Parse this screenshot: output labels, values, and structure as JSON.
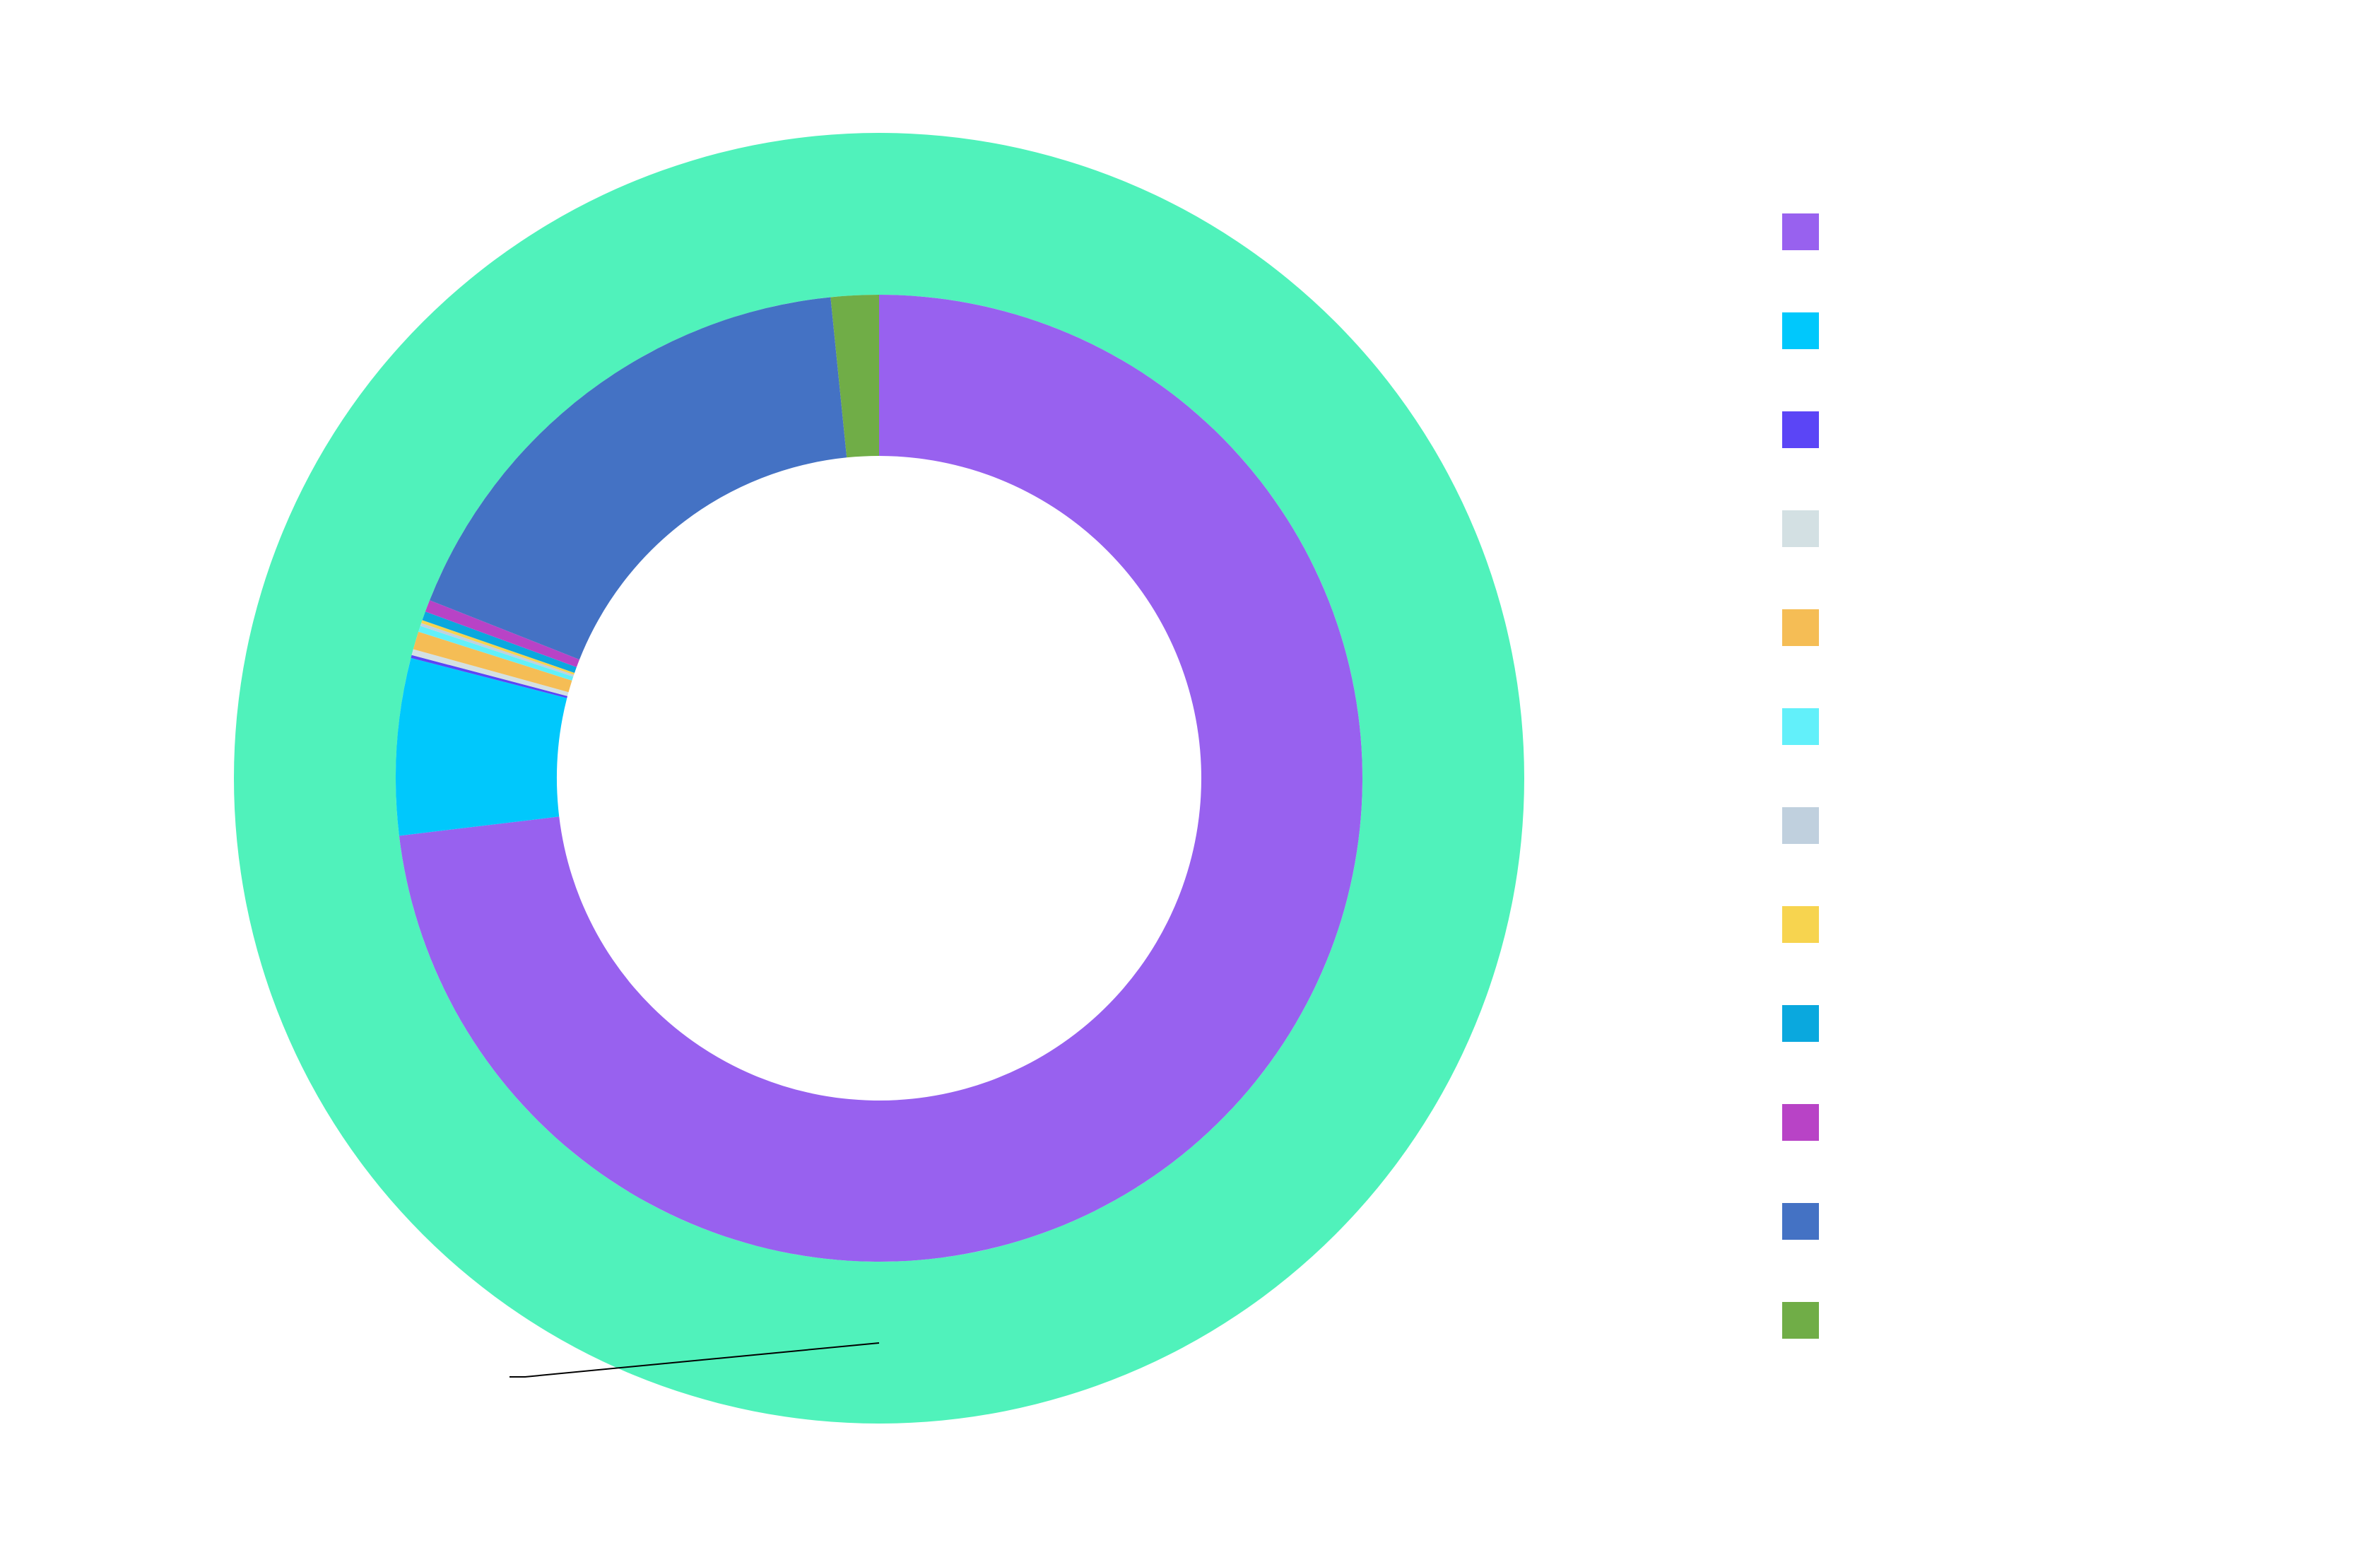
{
  "chart_data": {
    "type": "donut",
    "series": [
      {
        "values": [
          100
        ],
        "colors": [
          "#50f2bb"
        ]
      },
      {
        "values": [
          73.1,
          5.9,
          0.1,
          0.2,
          0.6,
          0.2,
          0.1,
          0.1,
          0.3,
          0.4,
          17.4,
          1.6
        ],
        "colors": [
          "#9861ef",
          "#00c8fc",
          "#5b45f6",
          "#d3e0e3",
          "#f5bd55",
          "#62f0fa",
          "#c0d0de",
          "#f7d44f",
          "#0aa8de",
          "#b843c6",
          "#4472c4",
          "#70ad47"
        ]
      }
    ]
  }
}
